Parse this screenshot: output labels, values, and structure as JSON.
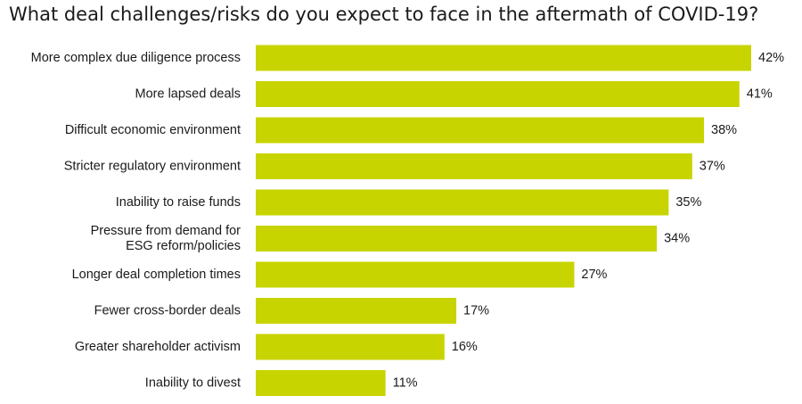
{
  "chart_data": {
    "type": "bar",
    "orientation": "horizontal",
    "title": "What deal challenges/risks do you expect to face in the aftermath of COVID-19?",
    "categories": [
      [
        "More complex due diligence process"
      ],
      [
        "More lapsed deals"
      ],
      [
        "Difficult economic environment"
      ],
      [
        "Stricter regulatory environment"
      ],
      [
        "Inability to raise funds"
      ],
      [
        "Pressure from demand for",
        "ESG reform/policies"
      ],
      [
        "Longer deal completion times"
      ],
      [
        "Fewer cross-border deals"
      ],
      [
        "Greater shareholder activism"
      ],
      [
        "Inability to divest"
      ]
    ],
    "values": [
      42,
      41,
      38,
      37,
      35,
      34,
      27,
      17,
      16,
      11
    ],
    "value_labels": [
      "42%",
      "41%",
      "38%",
      "37%",
      "35%",
      "34%",
      "27%",
      "17%",
      "16%",
      "11%"
    ],
    "bar_color": "#c8d400",
    "xlim": [
      0,
      42
    ],
    "grid": false,
    "legend": "none"
  }
}
